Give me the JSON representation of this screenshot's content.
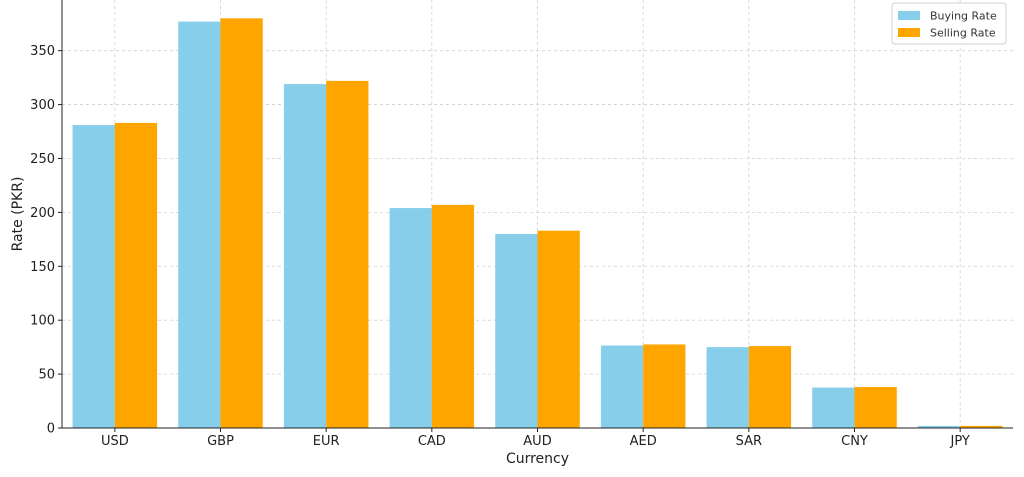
{
  "chart_data": {
    "type": "bar",
    "title": "",
    "xlabel": "Currency",
    "ylabel": "Rate (PKR)",
    "categories": [
      "USD",
      "GBP",
      "EUR",
      "CAD",
      "AUD",
      "AED",
      "SAR",
      "CNY",
      "JPY"
    ],
    "series": [
      {
        "name": "Buying Rate",
        "color": "#87CEEB",
        "values": [
          281,
          377,
          319,
          204,
          180,
          76.5,
          75,
          37.5,
          1.9
        ]
      },
      {
        "name": "Selling Rate",
        "color": "#FFA500",
        "values": [
          283,
          380,
          322,
          207,
          183,
          77.5,
          76,
          38,
          2.0
        ]
      }
    ],
    "ylim": [
      0,
      397
    ],
    "yticks": [
      0,
      50,
      100,
      150,
      200,
      250,
      300,
      350
    ],
    "grid": true,
    "legend_position": "top-right"
  }
}
